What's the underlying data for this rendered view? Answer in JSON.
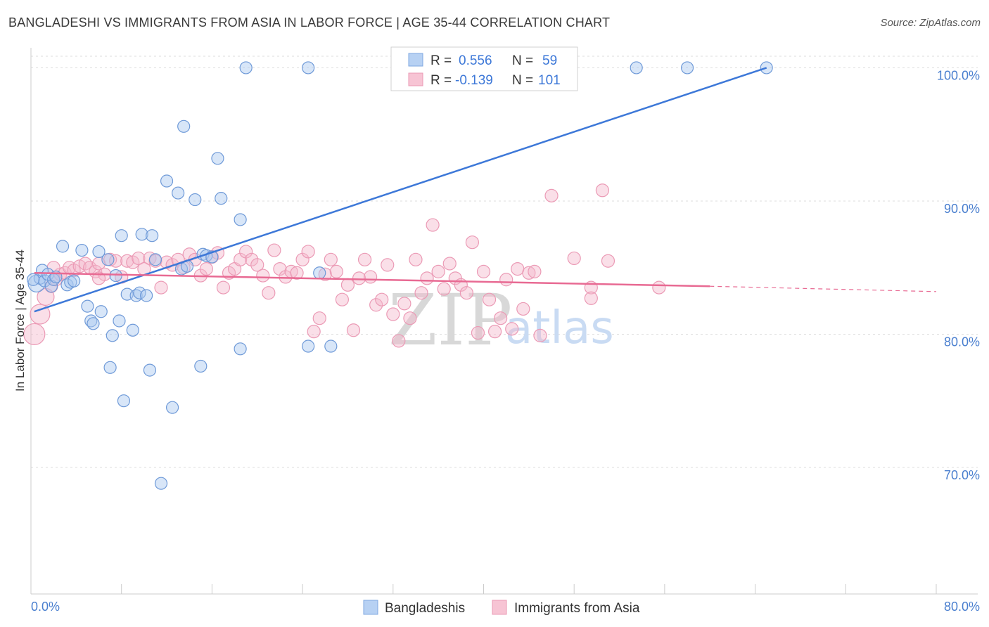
{
  "title": "BANGLADESHI VS IMMIGRANTS FROM ASIA IN LABOR FORCE | AGE 35-44 CORRELATION CHART",
  "source": "Source: ZipAtlas.com",
  "watermark": {
    "part1": "ZIP",
    "part2": "atlas"
  },
  "colors": {
    "blue": "#3d78d8",
    "blue_fill": "#a8c8f0",
    "pink": "#e86a93",
    "pink_fill": "#f5b8cc",
    "grid": "#dddddd"
  },
  "legend": {
    "series1": {
      "r_label": "R =",
      "r_value": "0.556",
      "n_label": "N =",
      "n_value": "59"
    },
    "series2": {
      "r_label": "R =",
      "r_value": "-0.139",
      "n_label": "N =",
      "n_value": "101"
    }
  },
  "chart_data": {
    "type": "scatter",
    "title": "BANGLADESHI VS IMMIGRANTS FROM ASIA IN LABOR FORCE | AGE 35-44 CORRELATION CHART",
    "xlabel": "",
    "ylabel": "In Labor Force | Age 35-44",
    "xlim": [
      0,
      80
    ],
    "ylim": [
      60.5,
      101.5
    ],
    "x_tick_labels": [
      "0.0%",
      "80.0%"
    ],
    "y_ticks": [
      70,
      80,
      90,
      100
    ],
    "y_tick_labels": [
      "70.0%",
      "80.0%",
      "90.0%",
      "100.0%"
    ],
    "series": [
      {
        "name": "Bangladeshis",
        "trend": {
          "x": [
            0.3,
            65
          ],
          "y": [
            81.7,
            100
          ]
        },
        "points": [
          [
            0.5,
            83.8
          ],
          [
            0.8,
            84.2
          ],
          [
            1.0,
            84.8
          ],
          [
            1.2,
            84.0
          ],
          [
            1.5,
            84.5
          ],
          [
            1.8,
            83.6
          ],
          [
            2.0,
            84.1
          ],
          [
            2.2,
            84.3
          ],
          [
            2.8,
            86.6
          ],
          [
            3.2,
            83.7
          ],
          [
            3.5,
            83.9
          ],
          [
            3.8,
            84.0
          ],
          [
            4.5,
            86.3
          ],
          [
            5.0,
            82.1
          ],
          [
            5.3,
            81.0
          ],
          [
            5.5,
            80.8
          ],
          [
            6.0,
            86.2
          ],
          [
            6.2,
            81.7
          ],
          [
            6.8,
            85.6
          ],
          [
            7.0,
            77.5
          ],
          [
            7.2,
            79.9
          ],
          [
            7.5,
            84.4
          ],
          [
            7.8,
            81.0
          ],
          [
            8.0,
            87.4
          ],
          [
            8.2,
            75.0
          ],
          [
            8.5,
            83.0
          ],
          [
            9.0,
            80.3
          ],
          [
            9.3,
            82.9
          ],
          [
            9.6,
            83.1
          ],
          [
            9.8,
            87.5
          ],
          [
            10.2,
            82.9
          ],
          [
            10.5,
            77.3
          ],
          [
            10.7,
            87.4
          ],
          [
            11.0,
            85.6
          ],
          [
            11.5,
            68.8
          ],
          [
            12.0,
            91.5
          ],
          [
            12.5,
            74.5
          ],
          [
            13.0,
            90.6
          ],
          [
            13.3,
            84.9
          ],
          [
            13.5,
            95.6
          ],
          [
            13.8,
            85.1
          ],
          [
            14.5,
            90.1
          ],
          [
            15.0,
            77.6
          ],
          [
            15.2,
            86.0
          ],
          [
            15.5,
            85.9
          ],
          [
            16.0,
            85.8
          ],
          [
            16.5,
            93.2
          ],
          [
            16.8,
            90.2
          ],
          [
            18.5,
            88.6
          ],
          [
            18.5,
            78.9
          ],
          [
            19.0,
            100.0
          ],
          [
            24.5,
            100.0
          ],
          [
            24.5,
            79.1
          ],
          [
            25.5,
            84.6
          ],
          [
            26.5,
            79.1
          ],
          [
            53.5,
            100.0
          ],
          [
            58.0,
            100.0
          ],
          [
            65.0,
            100.0
          ],
          [
            0.2,
            84.1
          ]
        ],
        "sizes": [
          26,
          16,
          16,
          16,
          16,
          16,
          16,
          16,
          16,
          16,
          16,
          16,
          16,
          16,
          16,
          16,
          16,
          16,
          16,
          16,
          16,
          16,
          16,
          16,
          16,
          16,
          16,
          16,
          16,
          16,
          16,
          16,
          16,
          16,
          16,
          16,
          16,
          16,
          16,
          16,
          16,
          16,
          16,
          16,
          16,
          16,
          16,
          16,
          16,
          16,
          16,
          16,
          16,
          16,
          16,
          16,
          16,
          16,
          16
        ]
      },
      {
        "name": "Immigrants from Asia",
        "trend": {
          "x": [
            0.3,
            60
          ],
          "y": [
            84.6,
            83.6
          ]
        },
        "trend_dashed": {
          "x": [
            60,
            80
          ],
          "y": [
            83.6,
            83.2
          ]
        },
        "points": [
          [
            0.3,
            80.0
          ],
          [
            0.8,
            81.5
          ],
          [
            1.3,
            82.8
          ],
          [
            1.8,
            83.6
          ],
          [
            2.2,
            84.1
          ],
          [
            2.6,
            84.5
          ],
          [
            3.0,
            84.6
          ],
          [
            3.4,
            85.0
          ],
          [
            3.8,
            84.8
          ],
          [
            4.3,
            85.1
          ],
          [
            4.8,
            85.3
          ],
          [
            5.2,
            85.0
          ],
          [
            5.7,
            84.7
          ],
          [
            6.0,
            85.3
          ],
          [
            6.5,
            84.5
          ],
          [
            7.0,
            85.6
          ],
          [
            7.5,
            85.5
          ],
          [
            8.0,
            84.3
          ],
          [
            8.5,
            85.5
          ],
          [
            9.0,
            85.4
          ],
          [
            9.5,
            85.7
          ],
          [
            10.0,
            84.9
          ],
          [
            10.5,
            85.7
          ],
          [
            11.0,
            85.5
          ],
          [
            11.5,
            83.5
          ],
          [
            12.0,
            85.4
          ],
          [
            12.5,
            85.2
          ],
          [
            13.0,
            85.6
          ],
          [
            13.5,
            85.0
          ],
          [
            14.0,
            86.0
          ],
          [
            14.5,
            85.6
          ],
          [
            15.0,
            84.4
          ],
          [
            15.5,
            84.9
          ],
          [
            16.0,
            85.8
          ],
          [
            16.5,
            86.1
          ],
          [
            17.0,
            83.5
          ],
          [
            17.5,
            84.6
          ],
          [
            18.0,
            84.9
          ],
          [
            18.5,
            85.6
          ],
          [
            19.0,
            86.2
          ],
          [
            19.5,
            85.6
          ],
          [
            20.0,
            85.2
          ],
          [
            20.5,
            84.4
          ],
          [
            21.0,
            83.1
          ],
          [
            21.5,
            86.3
          ],
          [
            22.0,
            84.9
          ],
          [
            22.5,
            84.3
          ],
          [
            23.0,
            84.7
          ],
          [
            23.5,
            84.6
          ],
          [
            24.0,
            85.6
          ],
          [
            24.5,
            86.2
          ],
          [
            25.0,
            80.2
          ],
          [
            25.5,
            81.2
          ],
          [
            26.0,
            84.5
          ],
          [
            26.5,
            85.6
          ],
          [
            27.0,
            84.7
          ],
          [
            27.5,
            82.6
          ],
          [
            28.0,
            83.7
          ],
          [
            28.5,
            80.3
          ],
          [
            29.0,
            84.2
          ],
          [
            29.5,
            85.6
          ],
          [
            30.0,
            84.3
          ],
          [
            30.5,
            82.2
          ],
          [
            31.0,
            82.6
          ],
          [
            31.5,
            85.2
          ],
          [
            32.0,
            81.5
          ],
          [
            32.5,
            79.5
          ],
          [
            33.0,
            82.3
          ],
          [
            33.5,
            81.2
          ],
          [
            34.0,
            85.6
          ],
          [
            34.5,
            83.1
          ],
          [
            35.0,
            84.2
          ],
          [
            35.5,
            88.2
          ],
          [
            36.0,
            84.7
          ],
          [
            36.5,
            83.4
          ],
          [
            37.0,
            85.3
          ],
          [
            37.5,
            84.2
          ],
          [
            38.0,
            83.7
          ],
          [
            38.5,
            83.1
          ],
          [
            39.0,
            86.9
          ],
          [
            39.5,
            80.1
          ],
          [
            40.0,
            84.7
          ],
          [
            40.5,
            82.6
          ],
          [
            41.0,
            80.2
          ],
          [
            41.5,
            81.2
          ],
          [
            42.0,
            84.1
          ],
          [
            42.5,
            80.4
          ],
          [
            43.0,
            84.9
          ],
          [
            43.5,
            81.9
          ],
          [
            44.0,
            84.6
          ],
          [
            44.5,
            84.7
          ],
          [
            45.0,
            79.9
          ],
          [
            46.0,
            90.4
          ],
          [
            48.0,
            85.7
          ],
          [
            49.5,
            83.5
          ],
          [
            49.5,
            82.7
          ],
          [
            50.5,
            90.8
          ],
          [
            51.0,
            85.5
          ],
          [
            55.5,
            83.5
          ],
          [
            6.0,
            84.2
          ],
          [
            2.0,
            85.0
          ]
        ]
      }
    ]
  },
  "axis": {
    "x_min_label": "0.0%",
    "x_max_label": "80.0%",
    "ylabel": "In Labor Force | Age 35-44"
  },
  "bottom_legend": {
    "series1": "Bangladeshis",
    "series2": "Immigrants from Asia"
  }
}
